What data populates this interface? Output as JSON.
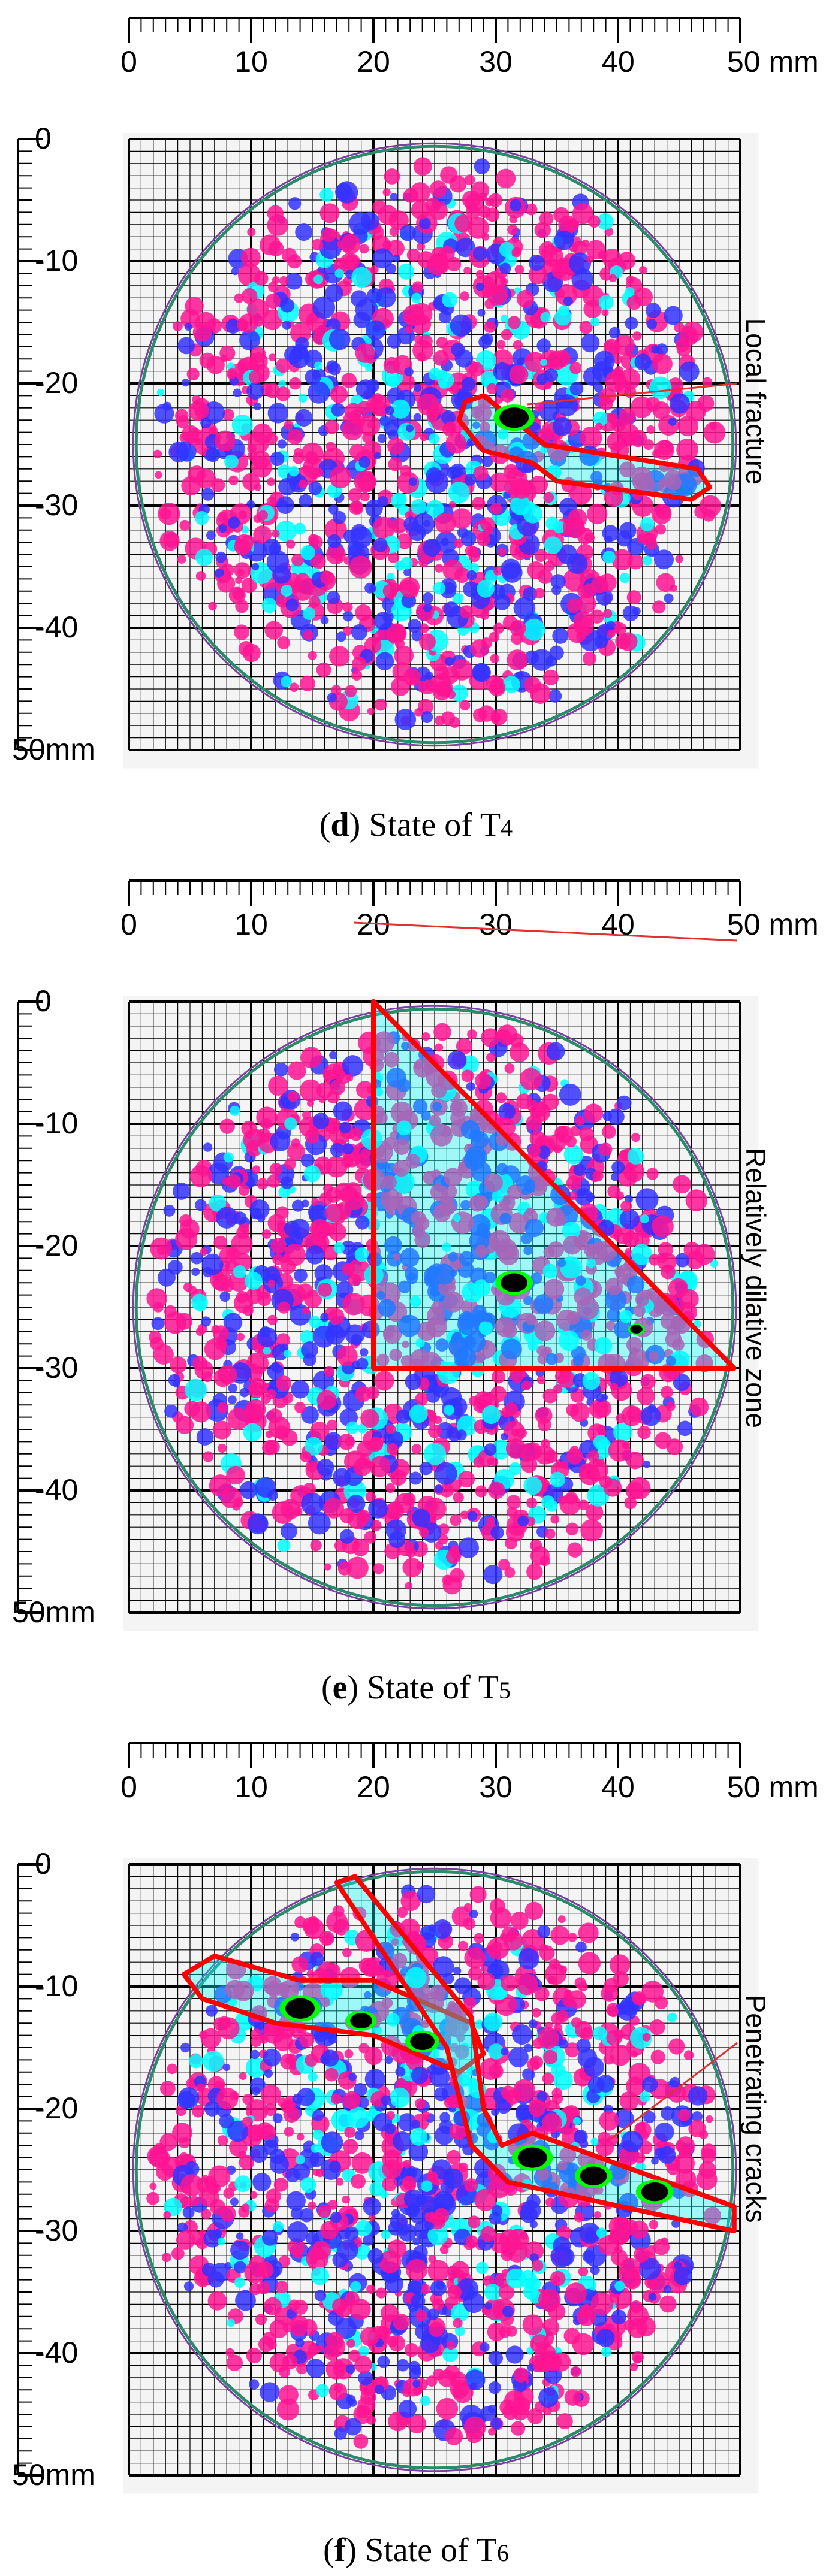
{
  "axis": {
    "x_ticks": [
      "0",
      "10",
      "20",
      "30",
      "40",
      "50 mm"
    ],
    "y_ticks": [
      "0",
      "-10",
      "-20",
      "-30",
      "-40",
      "50mm"
    ]
  },
  "panels": [
    {
      "id": "d",
      "caption_letter": "d",
      "caption_text": "State of T",
      "caption_sub": "4",
      "annotation": "Local fracture",
      "colors": {
        "outline": "#ff0000",
        "hot": "#ff1493",
        "mid": "#3333ff",
        "cool": "#00ffff",
        "peak": "#00ff00",
        "core": "#000000"
      }
    },
    {
      "id": "e",
      "caption_letter": "e",
      "caption_text": "State of T",
      "caption_sub": "5",
      "annotation": "Relatively dilative zone",
      "colors": {
        "outline": "#ff0000",
        "hot": "#ff1493",
        "mid": "#3333ff",
        "cool": "#00ffff",
        "peak": "#00ff00",
        "core": "#000000"
      }
    },
    {
      "id": "f",
      "caption_letter": "f",
      "caption_text": "State of T",
      "caption_sub": "6",
      "annotation": "Penetrating cracks",
      "colors": {
        "outline": "#ff0000",
        "hot": "#ff1493",
        "mid": "#3333ff",
        "cool": "#00ffff",
        "peak": "#00ff00",
        "core": "#000000"
      }
    }
  ]
}
